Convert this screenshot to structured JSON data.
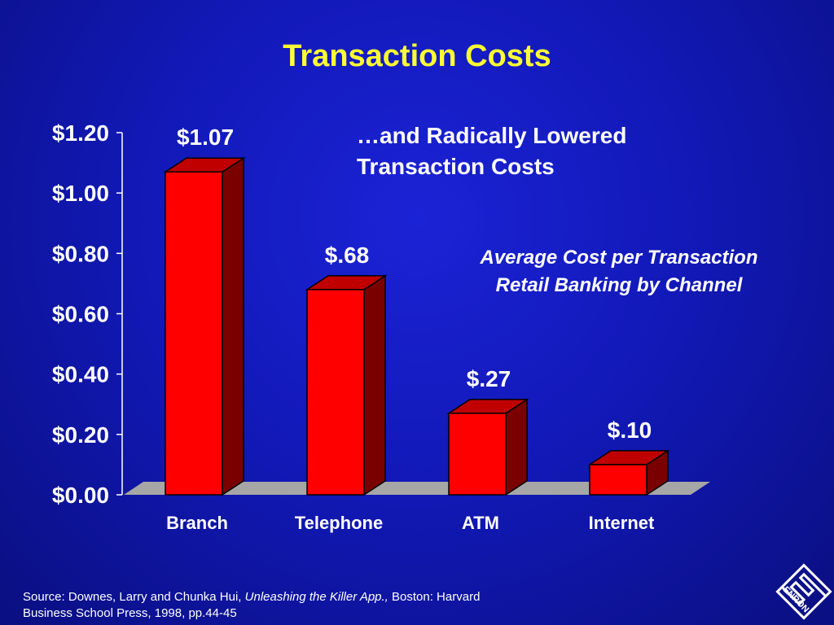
{
  "slide": {
    "title": "Transaction Costs",
    "subtitle_line1": "…and Radically Lowered",
    "subtitle_line2": "Transaction Costs",
    "caption_line1": "Average Cost per Transaction",
    "caption_line2": "Retail Banking by Channel",
    "source_prefix": "Source:  Downes, Larry and Chunka Hui, ",
    "source_book": "Unleashing the Killer App.,",
    "source_suffix": " Boston:  Harvard",
    "source_line2": "Business School Press, 1998, pp.44-45",
    "logo_text": "ENRON"
  },
  "colors": {
    "title": "#ffff33",
    "bar_front": "#ff0000",
    "bar_side": "#7a0000",
    "bar_top": "#c00000",
    "floor": "#a6a6a6"
  },
  "chart_data": {
    "type": "bar",
    "categories": [
      "Branch",
      "Telephone",
      "ATM",
      "Internet"
    ],
    "values": [
      1.07,
      0.68,
      0.27,
      0.1
    ],
    "data_labels": [
      "$1.07",
      "$.68",
      "$.27",
      "$.10"
    ],
    "yticks": [
      0,
      0.2,
      0.4,
      0.6,
      0.8,
      1.0,
      1.2
    ],
    "ytick_labels": [
      "$0.00",
      "$0.20",
      "$0.40",
      "$0.60",
      "$0.80",
      "$1.00",
      "$1.20"
    ],
    "ylim": [
      0,
      1.2
    ],
    "style": "3d",
    "grid": false
  }
}
